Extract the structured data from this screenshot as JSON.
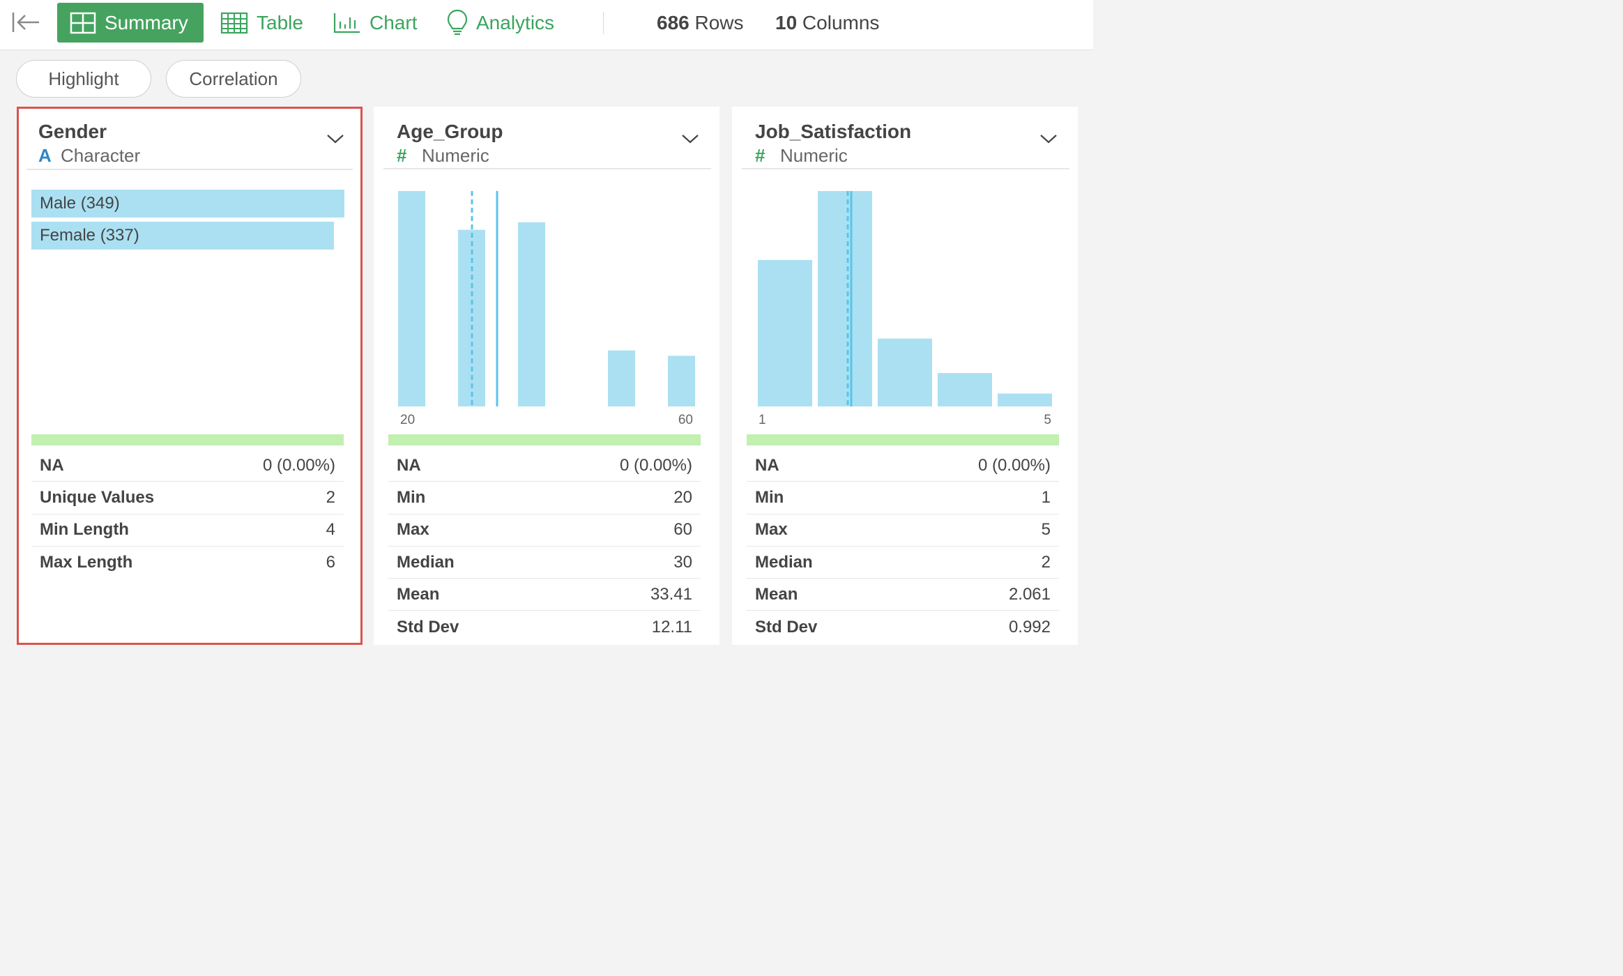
{
  "toolbar": {
    "tabs": [
      {
        "label": "Summary",
        "icon": "summary-grid-icon"
      },
      {
        "label": "Table",
        "icon": "table-icon"
      },
      {
        "label": "Chart",
        "icon": "bar-chart-icon"
      },
      {
        "label": "Analytics",
        "icon": "lightbulb-icon"
      }
    ],
    "active_tab": "Summary",
    "rows_count": "686",
    "rows_label": " Rows",
    "cols_count": "10",
    "cols_label": " Columns"
  },
  "buttons": {
    "highlight": "Highlight",
    "correlation": "Correlation"
  },
  "colors": {
    "accent": "#45a35f",
    "bar_fill": "#abe0f2",
    "mean_line": "#5bc4ea",
    "na_bar": "#c2f0b0",
    "selected_border": "#d9534f"
  },
  "cards": [
    {
      "name": "Gender",
      "type_symbol": "A",
      "type_label": "Character",
      "selected": true,
      "categories": [
        {
          "label": "Male (349)",
          "count": 349
        },
        {
          "label": "Female (337)",
          "count": 337
        }
      ],
      "stats": [
        {
          "label": "NA",
          "value": "0 (0.00%)"
        },
        {
          "label": "Unique Values",
          "value": "2"
        },
        {
          "label": "Min Length",
          "value": "4"
        },
        {
          "label": "Max Length",
          "value": "6"
        }
      ]
    },
    {
      "name": "Age_Group",
      "type_symbol": "#",
      "type_label": "Numeric",
      "histogram": {
        "x_min_label": "20",
        "x_max_label": "60",
        "bins": [
          {
            "x": 20,
            "rel_height": 1.0
          },
          {
            "x": 30,
            "rel_height": 0.82
          },
          {
            "x": 40,
            "rel_height": 0.855
          },
          {
            "x": 55,
            "rel_height": 0.26
          },
          {
            "x": 60,
            "rel_height": 0.235
          }
        ],
        "median": 30,
        "mean": 33.41
      },
      "stats": [
        {
          "label": "NA",
          "value": "0 (0.00%)"
        },
        {
          "label": "Min",
          "value": "20"
        },
        {
          "label": "Max",
          "value": "60"
        },
        {
          "label": "Median",
          "value": "30"
        },
        {
          "label": "Mean",
          "value": "33.41"
        },
        {
          "label": "Std Dev",
          "value": "12.11"
        }
      ]
    },
    {
      "name": "Job_Satisfaction",
      "type_symbol": "#",
      "type_label": "Numeric",
      "histogram": {
        "x_min_label": "1",
        "x_max_label": "5",
        "bins": [
          {
            "x": 1,
            "rel_height": 0.68
          },
          {
            "x": 2,
            "rel_height": 1.0
          },
          {
            "x": 3,
            "rel_height": 0.315
          },
          {
            "x": 4,
            "rel_height": 0.155
          },
          {
            "x": 5,
            "rel_height": 0.06
          }
        ],
        "median": 2,
        "mean": 2.061
      },
      "stats": [
        {
          "label": "NA",
          "value": "0 (0.00%)"
        },
        {
          "label": "Min",
          "value": "1"
        },
        {
          "label": "Max",
          "value": "5"
        },
        {
          "label": "Median",
          "value": "2"
        },
        {
          "label": "Mean",
          "value": "2.061"
        },
        {
          "label": "Std Dev",
          "value": "0.992"
        }
      ]
    }
  ]
}
